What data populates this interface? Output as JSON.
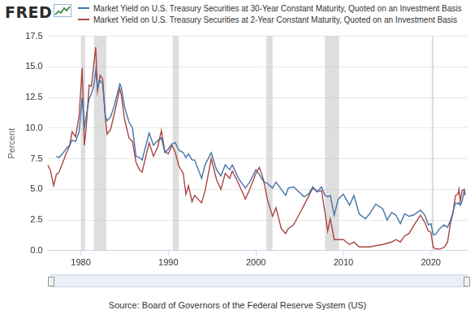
{
  "chart_data": {
    "type": "line",
    "logo": "FRED",
    "y_label": "Percent",
    "source": "Source: Board of Governors of the Federal Reserve System (US)",
    "legend": "top",
    "grid": true,
    "xlim": [
      1976.2,
      2024.2
    ],
    "xticks": [
      1980,
      1990,
      2000,
      2010,
      2020
    ],
    "ylim": [
      0,
      17.5
    ],
    "yticks": [
      {
        "value": 0,
        "label": "0.0"
      },
      2.5,
      {
        "value": 5,
        "label": "5.0"
      },
      7.5,
      {
        "value": 10,
        "label": "10.0"
      },
      12.5,
      {
        "value": 15,
        "label": "15.0"
      },
      17.5
    ],
    "recessions": [
      {
        "start": 1980.0,
        "end": 1980.5
      },
      {
        "start": 1981.5,
        "end": 1982.9
      },
      {
        "start": 1990.5,
        "end": 1991.2
      },
      {
        "start": 2001.2,
        "end": 2001.9
      },
      {
        "start": 2007.9,
        "end": 2009.5
      },
      {
        "start": 2020.1,
        "end": 2020.3
      }
    ],
    "x": [
      1976.2,
      1976.5,
      1976.9,
      1977.2,
      1977.5,
      1977.9,
      1978.3,
      1978.7,
      1979.0,
      1979.4,
      1979.8,
      1980.15,
      1980.4,
      1980.6,
      1980.95,
      1981.2,
      1981.45,
      1981.7,
      1981.9,
      1982.2,
      1982.5,
      1982.8,
      1983.0,
      1983.4,
      1983.8,
      1984.45,
      1984.6,
      1985.0,
      1985.5,
      1985.9,
      1986.3,
      1986.7,
      1987.0,
      1987.8,
      1988.3,
      1988.8,
      1989.2,
      1989.6,
      1990.0,
      1990.4,
      1990.8,
      1991.2,
      1991.7,
      1992.0,
      1992.3,
      1992.7,
      1993.0,
      1993.8,
      1994.2,
      1994.9,
      1995.5,
      1996.0,
      1996.5,
      1997.0,
      1997.3,
      1998.0,
      1998.8,
      1999.3,
      2000.0,
      2000.4,
      2000.9,
      2001.3,
      2001.9,
      2002.3,
      2002.9,
      2003.4,
      2003.7,
      2004.3,
      2004.9,
      2005.5,
      2006.0,
      2006.5,
      2007.0,
      2007.5,
      2007.9,
      2008.2,
      2008.5,
      2008.95,
      2009.4,
      2010.0,
      2010.7,
      2011.2,
      2011.8,
      2012.5,
      2013.0,
      2013.7,
      2014.5,
      2015.0,
      2015.5,
      2016.0,
      2016.5,
      2017.0,
      2017.5,
      2018.0,
      2018.8,
      2019.3,
      2019.7,
      2020.0,
      2020.25,
      2020.5,
      2021.0,
      2021.5,
      2021.9,
      2022.25,
      2022.5,
      2022.8,
      2023.1,
      2023.2,
      2023.35,
      2023.55,
      2023.8,
      2023.9
    ],
    "series": [
      {
        "name": "Market Yield on U.S. Treasury Securities at 30-Year Constant Maturity, Quoted on an Investment Basis",
        "color": "#4572a7",
        "values": [
          null,
          null,
          null,
          7.7,
          7.6,
          7.9,
          8.3,
          8.6,
          9.0,
          8.9,
          9.7,
          12.5,
          10.0,
          10.9,
          12.4,
          12.8,
          13.4,
          14.7,
          13.3,
          13.9,
          13.6,
          11.0,
          10.6,
          10.9,
          11.8,
          13.6,
          13.4,
          11.7,
          10.5,
          10.0,
          7.7,
          7.6,
          7.4,
          9.6,
          8.6,
          9.0,
          9.2,
          8.0,
          8.3,
          8.7,
          8.8,
          8.2,
          8.0,
          7.6,
          7.9,
          7.4,
          7.4,
          5.9,
          7.0,
          8.0,
          6.6,
          6.1,
          7.0,
          6.6,
          7.0,
          5.9,
          5.1,
          5.6,
          6.6,
          6.2,
          5.6,
          5.5,
          5.1,
          5.6,
          5.0,
          4.5,
          5.1,
          5.2,
          4.8,
          4.4,
          4.6,
          5.2,
          4.8,
          5.2,
          4.5,
          4.4,
          4.5,
          2.9,
          4.2,
          4.6,
          3.7,
          4.5,
          3.0,
          2.6,
          3.0,
          3.8,
          3.4,
          2.5,
          3.1,
          2.9,
          2.2,
          3.0,
          2.8,
          2.9,
          3.3,
          2.9,
          2.1,
          2.2,
          1.3,
          1.3,
          1.8,
          2.1,
          1.9,
          2.5,
          3.1,
          3.9,
          3.8,
          3.9,
          3.7,
          4.0,
          4.9,
          4.5
        ]
      },
      {
        "name": "Market Yield on U.S. Treasury Securities at 2-Year Constant Maturity, Quoted on an Investment Basis",
        "color": "#aa4643",
        "values": [
          7.0,
          6.6,
          5.3,
          6.2,
          6.4,
          7.1,
          7.9,
          8.5,
          9.7,
          9.3,
          11.0,
          14.9,
          8.6,
          9.9,
          13.5,
          13.4,
          15.0,
          16.6,
          13.0,
          14.3,
          14.0,
          10.8,
          9.5,
          9.9,
          11.1,
          13.2,
          12.8,
          10.7,
          9.2,
          8.9,
          7.2,
          6.6,
          6.4,
          8.8,
          7.7,
          8.5,
          9.8,
          8.1,
          7.9,
          8.6,
          8.0,
          6.9,
          6.3,
          4.6,
          5.3,
          4.0,
          4.5,
          3.9,
          4.9,
          7.5,
          5.8,
          5.0,
          6.3,
          5.9,
          6.5,
          5.5,
          4.2,
          5.0,
          6.3,
          6.8,
          5.7,
          4.2,
          2.8,
          3.5,
          1.8,
          1.4,
          1.8,
          2.1,
          2.9,
          3.7,
          4.4,
          5.1,
          4.8,
          4.9,
          3.1,
          1.6,
          2.6,
          0.9,
          0.9,
          0.9,
          0.5,
          0.7,
          0.3,
          0.3,
          0.3,
          0.4,
          0.5,
          0.6,
          0.7,
          0.9,
          0.7,
          1.2,
          1.4,
          2.0,
          2.9,
          2.3,
          1.6,
          1.5,
          0.3,
          0.15,
          0.13,
          0.25,
          0.7,
          2.3,
          3.0,
          4.5,
          4.6,
          5.0,
          4.0,
          4.9,
          5.0,
          4.6
        ]
      }
    ]
  }
}
